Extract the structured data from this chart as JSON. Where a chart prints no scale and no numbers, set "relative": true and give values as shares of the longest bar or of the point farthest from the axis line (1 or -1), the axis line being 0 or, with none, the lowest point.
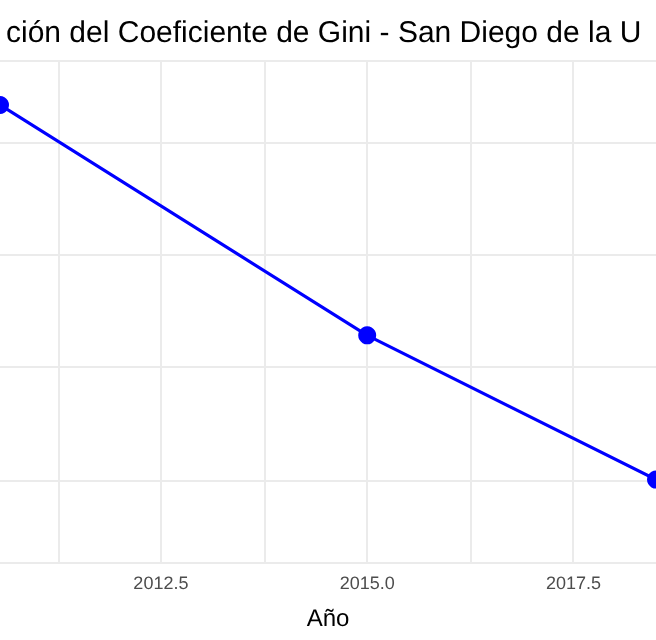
{
  "chart_data": {
    "type": "line",
    "title": "ción del Coeficiente de Gini - San Diego de la U",
    "xlabel": "Año",
    "x": [
      2010.55,
      2015,
      2018.5
    ],
    "series": [
      {
        "color": "#0000ff",
        "values": [
          1,
          0.385,
          0
        ]
      }
    ],
    "relative": true,
    "xlim": [
      2010.55,
      2018.5
    ],
    "xticks": [
      {
        "value": 2011.25,
        "label": null
      },
      {
        "value": 2012.5,
        "label": "2012.5"
      },
      {
        "value": 2013.75,
        "label": null
      },
      {
        "value": 2015,
        "label": "2015.0"
      },
      {
        "value": 2016.25,
        "label": null
      },
      {
        "value": 2017.5,
        "label": "2017.5"
      }
    ],
    "grid": true,
    "marker": "circle",
    "line_style": "solid"
  }
}
